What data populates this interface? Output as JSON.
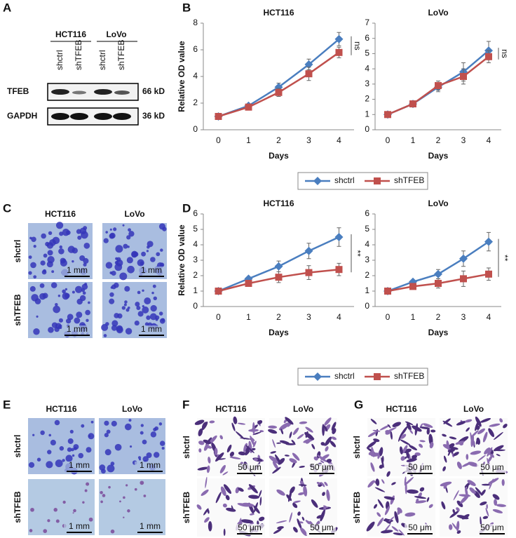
{
  "panel_labels": [
    "A",
    "B",
    "C",
    "D",
    "E",
    "F",
    "G"
  ],
  "blot": {
    "cell_lines": [
      "HCT116",
      "LoVo"
    ],
    "lanes": [
      "shctrl",
      "shTFEB",
      "shctrl",
      "shTFEB"
    ],
    "rows": [
      {
        "protein": "TFEB",
        "size": "66 kD"
      },
      {
        "protein": "GAPDH",
        "size": "36 kD"
      }
    ]
  },
  "panel_c": {
    "columns": [
      "HCT116",
      "LoVo"
    ],
    "rows": [
      "shctrl",
      "shTFEB"
    ],
    "scale_bars": [
      "1 mm",
      "1 mm",
      "1 mm",
      "1 mm"
    ]
  },
  "panel_e": {
    "columns": [
      "HCT116",
      "LoVo"
    ],
    "rows": [
      "shctrl",
      "shTFEB"
    ],
    "scale_bars": [
      "1 mm",
      "1 mm",
      "1 mm",
      "1 mm"
    ]
  },
  "panel_f": {
    "columns": [
      "HCT116",
      "LoVo"
    ],
    "rows": [
      "shctrl",
      "shTFEB"
    ],
    "scale_bars": [
      "50 μm",
      "50 μm",
      "50 μm",
      "50 μm"
    ]
  },
  "panel_g": {
    "columns": [
      "HCT116",
      "LoVo"
    ],
    "rows": [
      "shctrl",
      "shTFEB"
    ],
    "scale_bars": [
      "50 μm",
      "50 μm",
      "50 μm",
      "50 μm"
    ]
  },
  "chart_data": [
    {
      "type": "line",
      "title": "HCT116",
      "xlabel": "Days",
      "ylabel": "Relative OD value",
      "categories": [
        "0",
        "1",
        "2",
        "3",
        "4"
      ],
      "ylim": [
        0,
        8
      ],
      "yticks": [
        0,
        2,
        4,
        6,
        8
      ],
      "legend": "bottom",
      "annotation": "ns",
      "series": [
        {
          "name": "shctrl",
          "color": "#4a7ebf",
          "marker": "diamond",
          "values": [
            1,
            1.8,
            3.2,
            4.9,
            6.8
          ],
          "errors": [
            0.1,
            0.1,
            0.3,
            0.4,
            0.5
          ]
        },
        {
          "name": "shTFEB",
          "color": "#c0504d",
          "marker": "square",
          "values": [
            1,
            1.7,
            2.8,
            4.2,
            5.8
          ],
          "errors": [
            0.05,
            0.1,
            0.3,
            0.5,
            0.4
          ]
        }
      ]
    },
    {
      "type": "line",
      "title": "LoVo",
      "xlabel": "Days",
      "categories": [
        "0",
        "1",
        "2",
        "3",
        "4"
      ],
      "ylim": [
        0,
        7
      ],
      "yticks": [
        0,
        1,
        2,
        3,
        4,
        5,
        6,
        7
      ],
      "annotation": "ns",
      "series": [
        {
          "color": "#4a7ebf",
          "marker": "diamond",
          "values": [
            1,
            1.7,
            2.8,
            3.8,
            5.2
          ],
          "errors": [
            0.05,
            0.1,
            0.3,
            0.6,
            0.6
          ]
        },
        {
          "color": "#c0504d",
          "marker": "square",
          "values": [
            1,
            1.7,
            2.9,
            3.5,
            4.8
          ],
          "errors": [
            0.05,
            0.1,
            0.3,
            0.5,
            0.4
          ]
        }
      ]
    },
    {
      "type": "line",
      "title": "HCT116",
      "xlabel": "Days",
      "ylabel": "Relative OD value",
      "categories": [
        "0",
        "1",
        "2",
        "3",
        "4"
      ],
      "ylim": [
        0,
        6
      ],
      "yticks": [
        0,
        1,
        2,
        3,
        4,
        5,
        6
      ],
      "legend": "bottom",
      "annotation": "**",
      "series": [
        {
          "name": "shctrl",
          "color": "#4a7ebf",
          "marker": "diamond",
          "values": [
            1,
            1.8,
            2.6,
            3.6,
            4.5
          ],
          "errors": [
            0.1,
            0.1,
            0.35,
            0.5,
            0.6
          ]
        },
        {
          "name": "shTFEB",
          "color": "#c0504d",
          "marker": "square",
          "values": [
            1,
            1.5,
            1.9,
            2.2,
            2.4
          ],
          "errors": [
            0.1,
            0.1,
            0.35,
            0.45,
            0.4
          ]
        }
      ]
    },
    {
      "type": "line",
      "title": "LoVo",
      "xlabel": "Days",
      "categories": [
        "0",
        "1",
        "2",
        "3",
        "4"
      ],
      "ylim": [
        0,
        6
      ],
      "yticks": [
        0,
        1,
        2,
        3,
        4,
        5,
        6
      ],
      "annotation": "**",
      "series": [
        {
          "color": "#4a7ebf",
          "marker": "diamond",
          "values": [
            1,
            1.6,
            2.1,
            3.1,
            4.2
          ],
          "errors": [
            0.1,
            0.1,
            0.3,
            0.5,
            0.6
          ]
        },
        {
          "color": "#c0504d",
          "marker": "square",
          "values": [
            1,
            1.3,
            1.5,
            1.8,
            2.1
          ],
          "errors": [
            0.1,
            0.1,
            0.3,
            0.5,
            0.4
          ]
        }
      ]
    }
  ]
}
